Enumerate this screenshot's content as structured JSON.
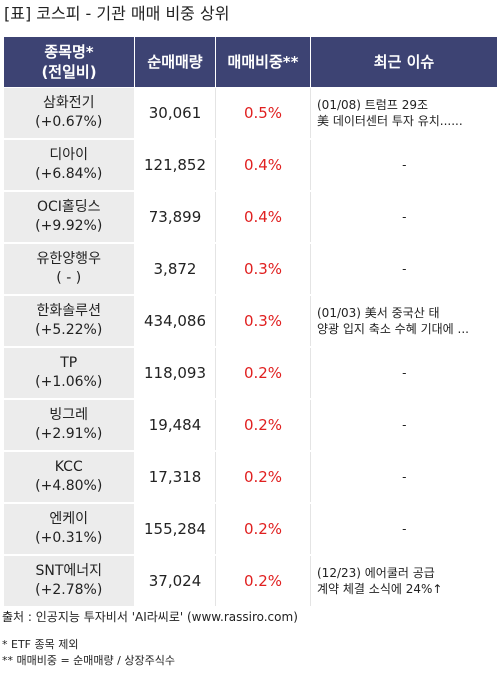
{
  "title": "[표] 코스피 - 기관 매매 비중 상위",
  "headers": {
    "name_line1": "종목명*",
    "name_line2": "(전일비)",
    "net_volume": "순매매량",
    "ratio": "매매비중**",
    "issue": "최근 이슈"
  },
  "rows": [
    {
      "name": "삼화전기",
      "change": "(+0.67%)",
      "volume": "30,061",
      "ratio": "0.5%",
      "issue1": "(01/08) 트럼프 29조",
      "issue2": "美 데이터센터 투자 유치......"
    },
    {
      "name": "디아이",
      "change": "(+6.84%)",
      "volume": "121,852",
      "ratio": "0.4%",
      "issue1": "-",
      "issue2": ""
    },
    {
      "name": "OCI홀딩스",
      "change": "(+9.92%)",
      "volume": "73,899",
      "ratio": "0.4%",
      "issue1": "-",
      "issue2": ""
    },
    {
      "name": "유한양행우",
      "change": "( - )",
      "volume": "3,872",
      "ratio": "0.3%",
      "issue1": "-",
      "issue2": ""
    },
    {
      "name": "한화솔루션",
      "change": "(+5.22%)",
      "volume": "434,086",
      "ratio": "0.3%",
      "issue1": "(01/03) 美서 중국산 태",
      "issue2": "양광 입지 축소 수혜 기대에 ..."
    },
    {
      "name": "TP",
      "change": "(+1.06%)",
      "volume": "118,093",
      "ratio": "0.2%",
      "issue1": "-",
      "issue2": ""
    },
    {
      "name": "빙그레",
      "change": "(+2.91%)",
      "volume": "19,484",
      "ratio": "0.2%",
      "issue1": "-",
      "issue2": ""
    },
    {
      "name": "KCC",
      "change": "(+4.80%)",
      "volume": "17,318",
      "ratio": "0.2%",
      "issue1": "-",
      "issue2": ""
    },
    {
      "name": "엔케이",
      "change": "(+0.31%)",
      "volume": "155,284",
      "ratio": "0.2%",
      "issue1": "-",
      "issue2": ""
    },
    {
      "name": "SNT에너지",
      "change": "(+2.78%)",
      "volume": "37,024",
      "ratio": "0.2%",
      "issue1": "(12/23) 에어쿨러 공급",
      "issue2": "계약 체결 소식에 24%↑"
    }
  ],
  "source": "출처 : 인공지능 투자비서 'AI라씨로' (www.rassiro.com)",
  "note1": "* ETF 종목 제외",
  "note2": "** 매매비중 = 순매매량 / 상장주식수",
  "colors": {
    "header_bg": "#3d4373",
    "name_bg": "#ececec",
    "ratio_text": "#e02020"
  }
}
